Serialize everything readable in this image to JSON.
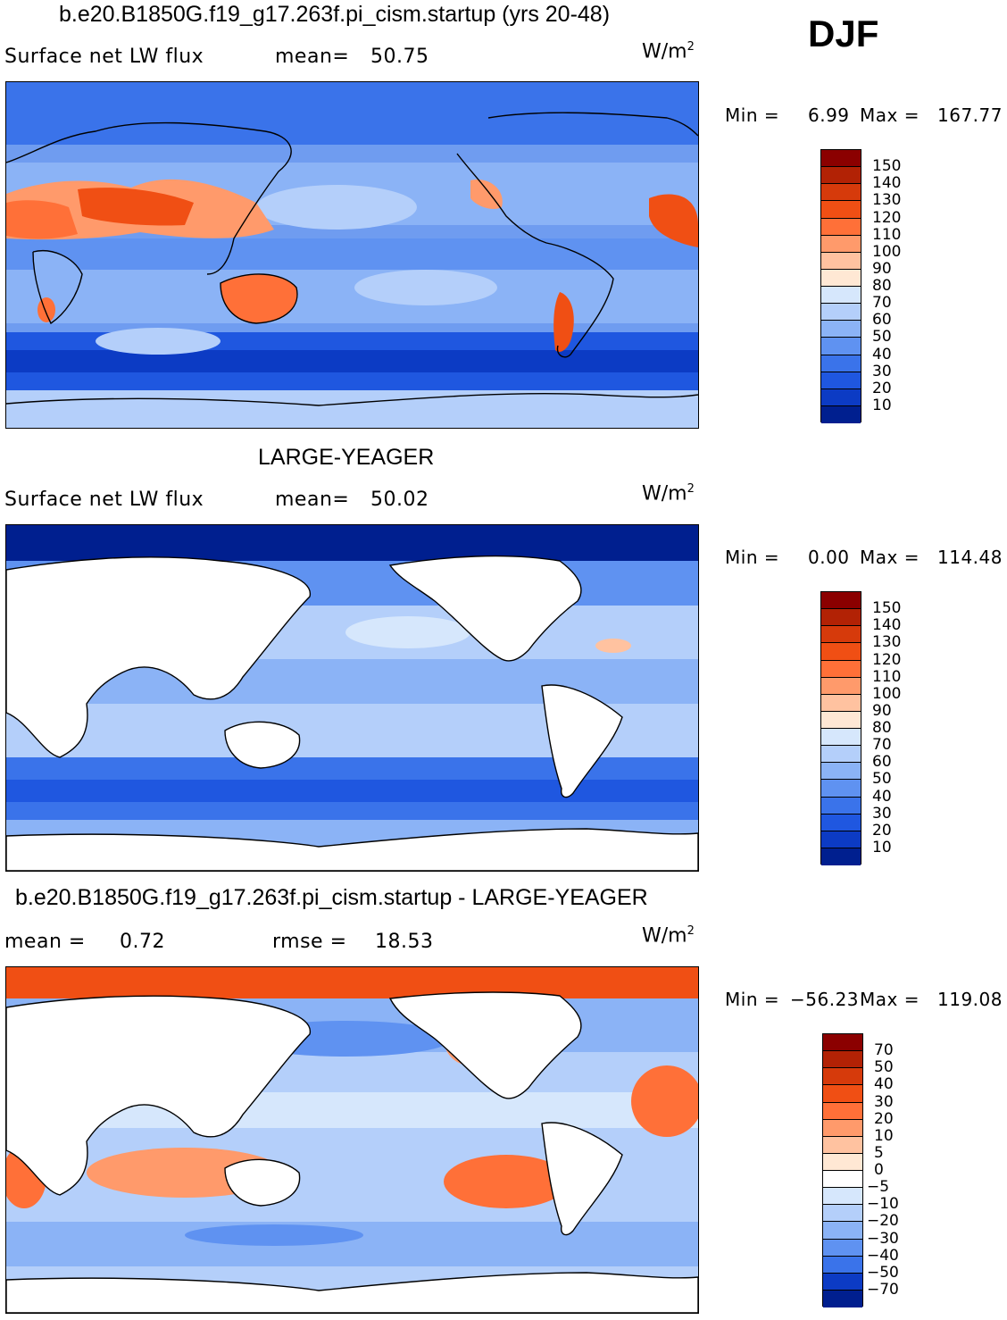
{
  "season": "DJF",
  "chart_data": [
    {
      "type": "heatmap",
      "title": "b.e20.B1850G.f19_g17.263f.pi_cism.startup (yrs 20-48)",
      "variable": "Surface net LW flux",
      "stat_label": "mean=",
      "mean": "50.75",
      "units": "W/m",
      "units_exp": "2",
      "min_label": "Min  =",
      "min": "6.99",
      "max_label": "Max  =",
      "max": "167.77",
      "levels": [
        "150",
        "140",
        "130",
        "120",
        "110",
        "100",
        "90",
        "80",
        "70",
        "60",
        "50",
        "40",
        "30",
        "20",
        "10"
      ],
      "colors": [
        "#8b0000",
        "#b22205",
        "#d63a0b",
        "#f04f14",
        "#ff7038",
        "#ff9a6b",
        "#ffc2a0",
        "#ffe8d4",
        "#d6e7fc",
        "#b4cffa",
        "#8bb3f6",
        "#5f92f1",
        "#3a73ea",
        "#1f57e0",
        "#0c3bc4",
        "#001f8f"
      ]
    },
    {
      "type": "heatmap",
      "title": "LARGE-YEAGER",
      "variable": "Surface net LW flux",
      "stat_label": "mean=",
      "mean": "50.02",
      "units": "W/m",
      "units_exp": "2",
      "min_label": "Min  =",
      "min": "0.00",
      "max_label": "Max  =",
      "max": "114.48",
      "levels": [
        "150",
        "140",
        "130",
        "120",
        "110",
        "100",
        "90",
        "80",
        "70",
        "60",
        "50",
        "40",
        "30",
        "20",
        "10"
      ],
      "colors": [
        "#8b0000",
        "#b22205",
        "#d63a0b",
        "#f04f14",
        "#ff7038",
        "#ff9a6b",
        "#ffc2a0",
        "#ffe8d4",
        "#d6e7fc",
        "#b4cffa",
        "#8bb3f6",
        "#5f92f1",
        "#3a73ea",
        "#1f57e0",
        "#0c3bc4",
        "#001f8f"
      ]
    },
    {
      "type": "heatmap",
      "title": "b.e20.B1850G.f19_g17.263f.pi_cism.startup - LARGE-YEAGER",
      "stat_label": "mean  =",
      "mean": "0.72",
      "stat2_label": "rmse  =",
      "stat2": "18.53",
      "units": "W/m",
      "units_exp": "2",
      "min_label": "Min  =",
      "min": "−56.23",
      "max_label": "Max  =",
      "max": "119.08",
      "levels": [
        "70",
        "50",
        "40",
        "30",
        "20",
        "10",
        "5",
        "0",
        "−5",
        "−10",
        "−20",
        "−30",
        "−40",
        "−50",
        "−70"
      ],
      "colors": [
        "#8b0000",
        "#b22205",
        "#d63a0b",
        "#f04f14",
        "#ff7038",
        "#ff9a6b",
        "#ffc2a0",
        "#ffe8d4",
        "#ffffff",
        "#d6e7fc",
        "#b4cffa",
        "#8bb3f6",
        "#5f92f1",
        "#3a73ea",
        "#0c3bc4",
        "#001f8f"
      ]
    }
  ]
}
